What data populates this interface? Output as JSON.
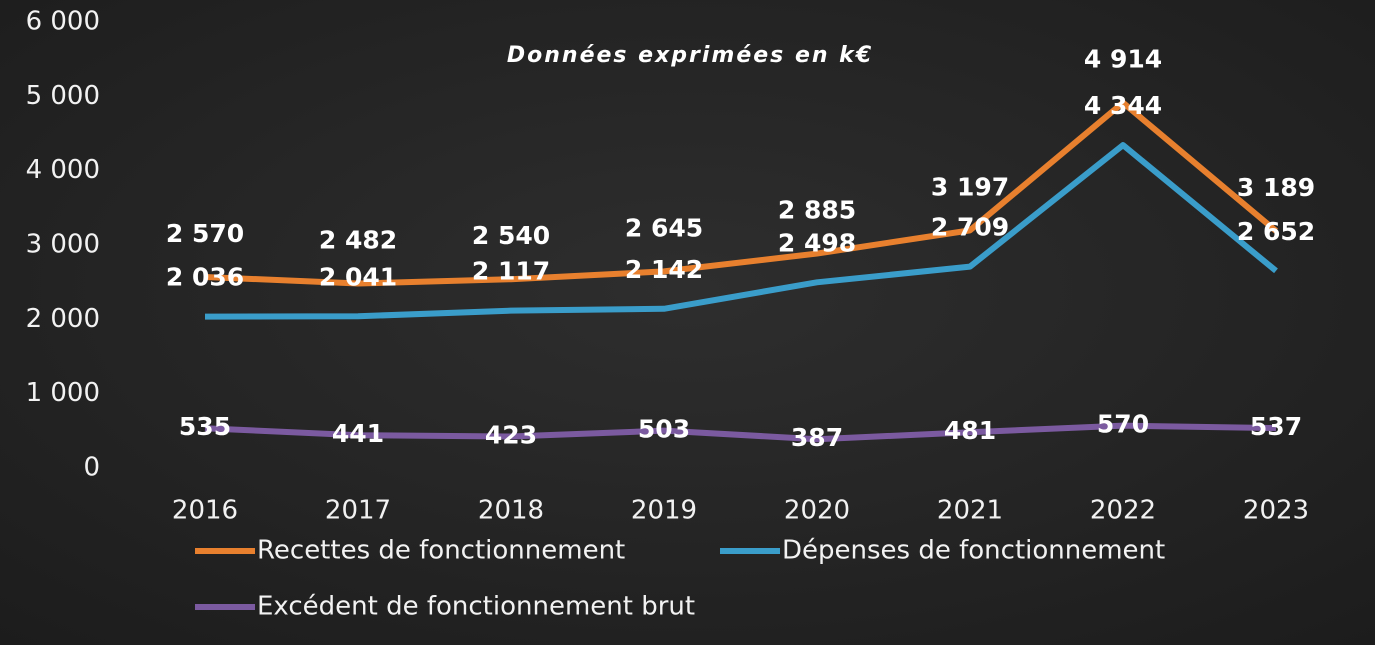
{
  "chart_data": {
    "type": "line",
    "title": "Données exprimées en k€",
    "categories": [
      "2016",
      "2017",
      "2018",
      "2019",
      "2020",
      "2021",
      "2022",
      "2023"
    ],
    "series": [
      {
        "name": "Recettes de fonctionnement",
        "color": "#e8802e",
        "values": [
          2570,
          2482,
          2540,
          2645,
          2885,
          3197,
          4914,
          3189
        ],
        "value_labels": [
          "2 570",
          "2 482",
          "2 540",
          "2 645",
          "2 885",
          "3 197",
          "4 914",
          "3 189"
        ]
      },
      {
        "name": "Dépenses de fonctionnement",
        "color": "#3a9dca",
        "values": [
          2036,
          2041,
          2117,
          2142,
          2498,
          2709,
          4344,
          2652
        ],
        "value_labels": [
          "2 036",
          "2 041",
          "2 117",
          "2 142",
          "2 498",
          "2 709",
          "4 344",
          "2 652"
        ]
      },
      {
        "name": "Excédent de fonctionnement brut",
        "color": "#7b5aa0",
        "values": [
          535,
          441,
          423,
          503,
          387,
          481,
          570,
          537
        ]
      }
    ],
    "ylim": [
      0,
      6000
    ],
    "yticks": [
      0,
      {
        "value": 1000,
        "label": "1 000"
      },
      {
        "value": 2000,
        "label": "2 000"
      },
      {
        "value": 3000,
        "label": "3 000"
      },
      {
        "value": 4000,
        "label": "4 000"
      },
      {
        "value": 5000,
        "label": "5 000"
      },
      {
        "value": 6000,
        "label": "6 000"
      }
    ],
    "grid": false
  }
}
